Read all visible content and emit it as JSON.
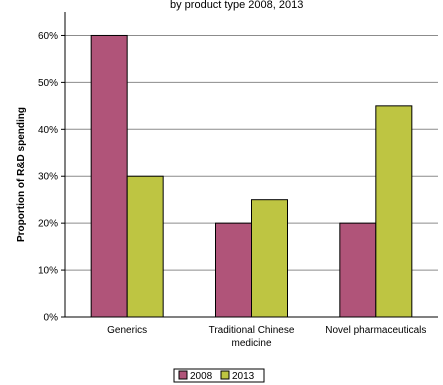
{
  "chart_data": {
    "type": "bar",
    "title": "by product type 2008, 2013",
    "ylabel": "Proportion of R&D spending",
    "xlabel": "",
    "categories": [
      [
        "Generics"
      ],
      [
        "Traditional Chinese",
        "medicine"
      ],
      [
        "Novel pharmaceuticals"
      ]
    ],
    "series": [
      {
        "name": "2008",
        "color": "#b05479",
        "values": [
          60,
          20,
          20
        ]
      },
      {
        "name": "2013",
        "color": "#bec542",
        "values": [
          30,
          25,
          45
        ]
      }
    ],
    "ylim": [
      0,
      65
    ],
    "yticks": [
      0,
      10,
      20,
      30,
      40,
      50,
      60
    ],
    "ytick_labels": [
      "0%",
      "10%",
      "20%",
      "30%",
      "40%",
      "50%",
      "60%"
    ],
    "grid": true,
    "legend": "bottom-center"
  }
}
